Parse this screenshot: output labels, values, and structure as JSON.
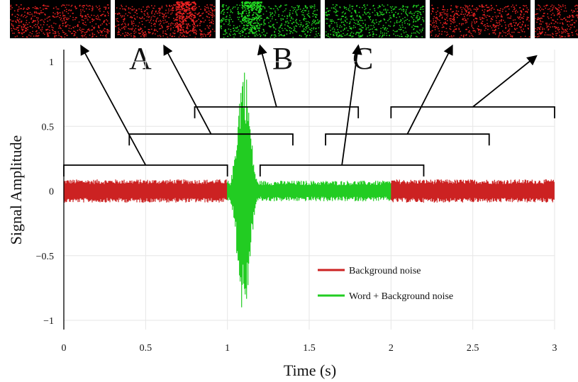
{
  "chart_data": {
    "type": "line",
    "title": "",
    "xlabel": "Time (s)",
    "ylabel": "Signal Amplitude",
    "xlim": [
      0,
      3
    ],
    "ylim": [
      -1.05,
      1.05
    ],
    "xticks": [
      0,
      0.5,
      1,
      1.5,
      2,
      2.5,
      3
    ],
    "xtick_labels": [
      "0",
      "0.5",
      "1",
      "1.5",
      "2",
      "2.5",
      "3"
    ],
    "yticks": [
      -1,
      -0.5,
      0,
      0.5,
      1
    ],
    "ytick_labels": [
      "−1",
      "−0.5",
      "0",
      "0.5",
      "1"
    ],
    "grid": true,
    "legend_position": "bottom-right",
    "series": [
      {
        "name": "Background noise",
        "color": "#cc2222",
        "intervals": [
          [
            0,
            1.0
          ],
          [
            2.0,
            3.0
          ]
        ],
        "amplitude": 0.09
      },
      {
        "name": "Word + Background noise",
        "color": "#22cc22",
        "intervals": [
          [
            1.0,
            2.0
          ]
        ],
        "noise_amplitude": 0.08,
        "word_burst": {
          "start": 1.0,
          "end": 1.2,
          "peak_time": 1.1,
          "peak_amplitude": 1.0
        }
      }
    ],
    "windows": [
      {
        "start": 0.0,
        "end": 1.0,
        "level": 0.2
      },
      {
        "start": 0.4,
        "end": 1.4,
        "level": 0.44
      },
      {
        "start": 0.8,
        "end": 1.8,
        "level": 0.65
      },
      {
        "start": 1.2,
        "end": 2.2,
        "level": 0.2
      },
      {
        "start": 1.6,
        "end": 2.6,
        "level": 0.44
      },
      {
        "start": 2.0,
        "end": 3.0,
        "level": 0.65
      }
    ],
    "spectrogram_panels": [
      {
        "color": "red",
        "contains_word": false
      },
      {
        "color": "red",
        "contains_word": true
      },
      {
        "color": "green",
        "contains_word": true
      },
      {
        "color": "green",
        "contains_word": false
      },
      {
        "color": "red",
        "contains_word": false
      },
      {
        "color": "red",
        "contains_word": false
      }
    ],
    "annotations": [
      "A",
      "B",
      "C"
    ]
  }
}
